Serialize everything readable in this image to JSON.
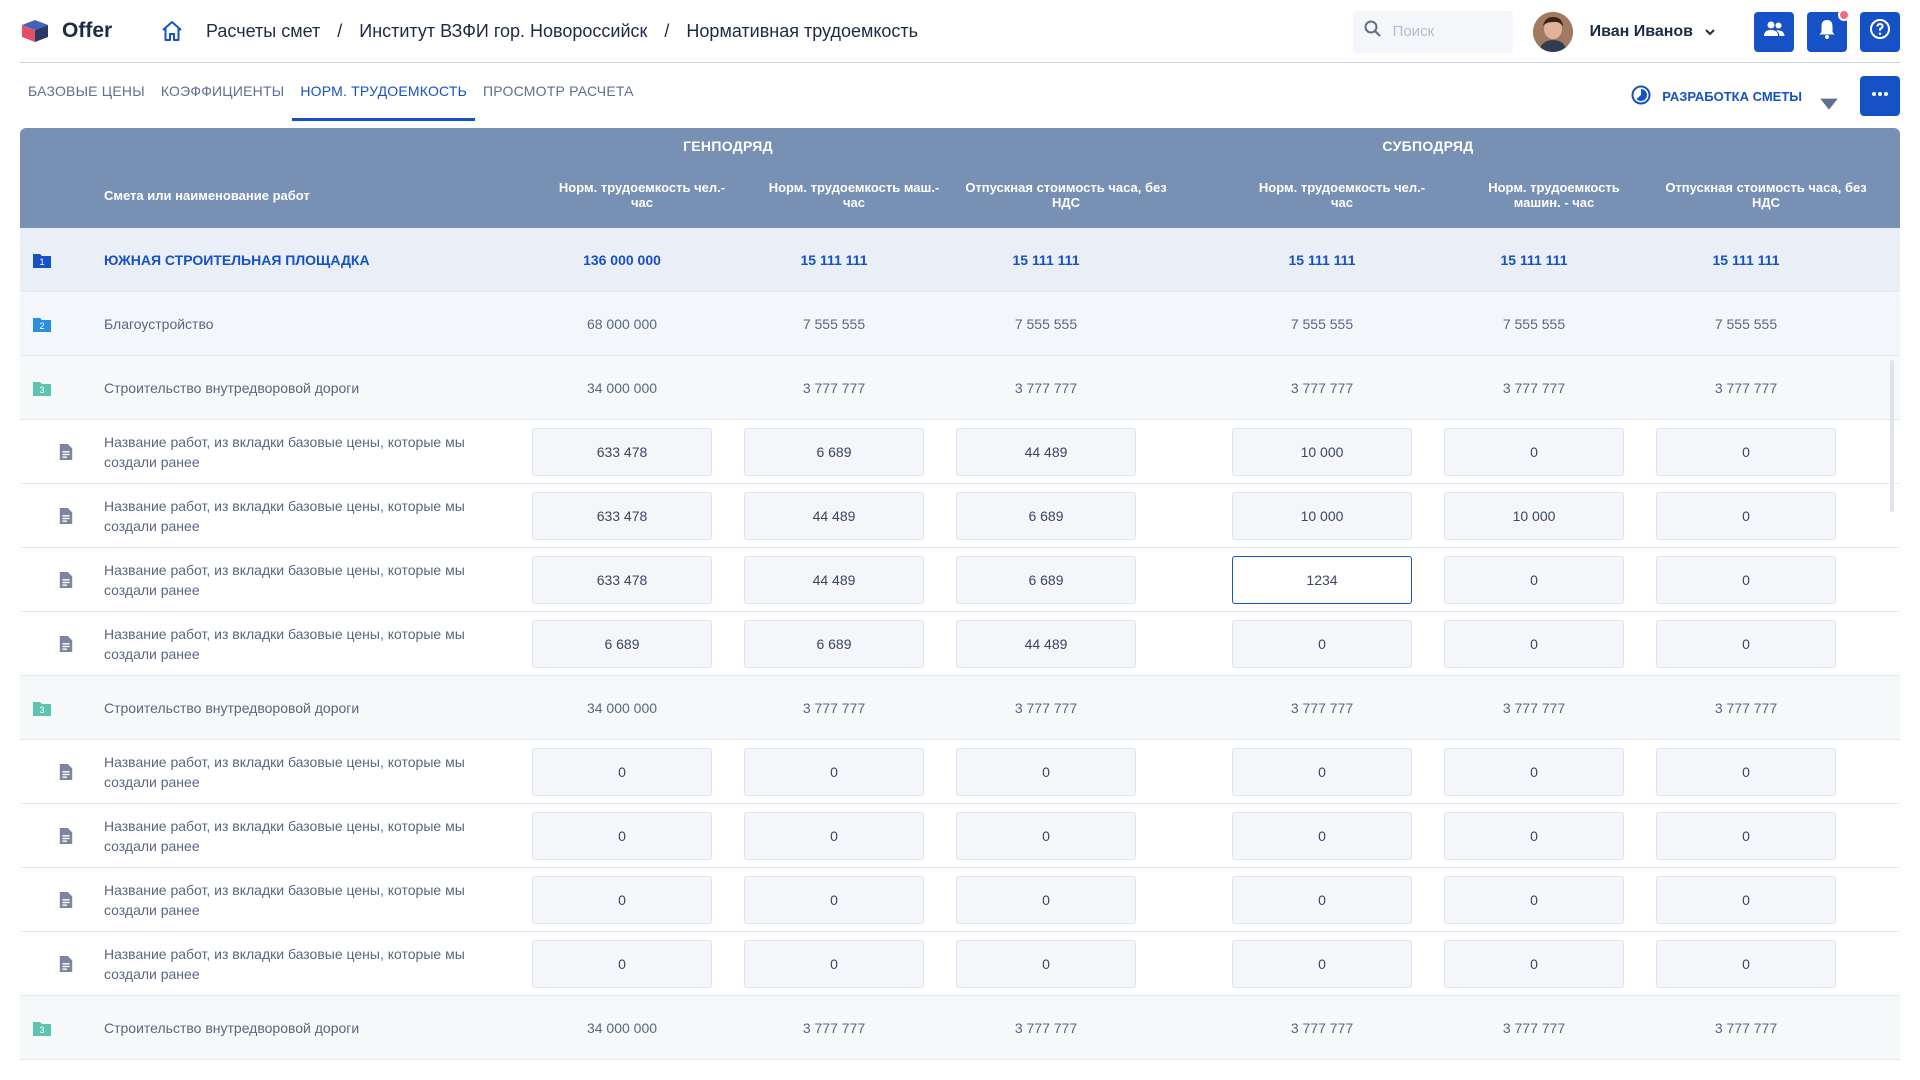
{
  "app": {
    "name": "Offer"
  },
  "breadcrumb": [
    "Расчеты смет",
    "Институт ВЗФИ гор. Новороссийск",
    "Нормативная трудоемкость"
  ],
  "breadcrumb_sep": "/",
  "search": {
    "placeholder": "Поиск"
  },
  "user": {
    "name": "Иван Иванов"
  },
  "tabs": [
    {
      "label": "БАЗОВЫЕ ЦЕНЫ"
    },
    {
      "label": "КОЭФФИЦИЕНТЫ"
    },
    {
      "label": "НОРМ. ТРУДОЕМКОСТЬ"
    },
    {
      "label": "ПРОСМОТР РАСЧЕТА"
    }
  ],
  "active_tab": 2,
  "stage": {
    "label": "РАЗРАБОТКА СМЕТЫ"
  },
  "colors": {
    "primary": "#1651c6",
    "header_bg": "#7890b4",
    "notification": "#f26c78"
  },
  "table": {
    "groups": [
      "ГЕНПОДРЯД",
      "СУБПОДРЯД"
    ],
    "name_header": "Смета или наименование работ",
    "columns": [
      "Норм. трудоемкость чел.- час",
      "Норм. трудоемкость маш.- час",
      "Отпускная стоимость часа, без НДС",
      "Норм. трудоемкость чел.- час",
      "Норм. трудоемкость машин. - час",
      "Отпускная стоимость часа, без НДС"
    ],
    "rows": [
      {
        "type": "l1",
        "badge": "1",
        "name": "ЮЖНАЯ СТРОИТЕЛЬНАЯ ПЛОЩАДКА",
        "values": [
          "136 000 000",
          "15 111 111",
          "15 111 111",
          "15 111 111",
          "15 111 111",
          "15 111 111"
        ]
      },
      {
        "type": "l2",
        "badge": "2",
        "name": "Благоустройство",
        "values": [
          "68 000 000",
          "7 555 555",
          "7 555 555",
          "7 555 555",
          "7 555 555",
          "7 555 555"
        ]
      },
      {
        "type": "l3",
        "badge": "3",
        "name": "Строительство внутредворовой дороги",
        "values": [
          "34 000 000",
          "3 777 777",
          "3 777 777",
          "3 777 777",
          "3 777 777",
          "3 777 777"
        ]
      },
      {
        "type": "item",
        "name": "Название работ, из вкладки базовые цены, которые мы создали ранее",
        "values": [
          "633 478",
          "6 689",
          "44 489",
          "10 000",
          "0",
          "0"
        ]
      },
      {
        "type": "item",
        "name": "Название работ, из вкладки базовые цены, которые мы создали ранее",
        "values": [
          "633 478",
          "44 489",
          "6 689",
          "10 000",
          "10 000",
          "0"
        ]
      },
      {
        "type": "item",
        "name": "Название работ, из вкладки базовые цены, которые мы создали ранее",
        "values": [
          "633 478",
          "44 489",
          "6 689",
          "1234",
          "0",
          "0"
        ],
        "focus_col": 3
      },
      {
        "type": "item",
        "name": "Название работ, из вкладки базовые цены, которые мы создали ранее",
        "values": [
          "6 689",
          "6 689",
          "44 489",
          "0",
          "0",
          "0"
        ]
      },
      {
        "type": "l3",
        "badge": "3",
        "name": "Строительство внутредворовой дороги",
        "values": [
          "34 000 000",
          "3 777 777",
          "3 777 777",
          "3 777 777",
          "3 777 777",
          "3 777 777"
        ]
      },
      {
        "type": "item",
        "name": "Название работ, из вкладки базовые цены, которые мы создали ранее",
        "values": [
          "0",
          "0",
          "0",
          "0",
          "0",
          "0"
        ]
      },
      {
        "type": "item",
        "name": "Название работ, из вкладки базовые цены, которые мы создали ранее",
        "values": [
          "0",
          "0",
          "0",
          "0",
          "0",
          "0"
        ]
      },
      {
        "type": "item",
        "name": "Название работ, из вкладки базовые цены, которые мы создали ранее",
        "values": [
          "0",
          "0",
          "0",
          "0",
          "0",
          "0"
        ]
      },
      {
        "type": "item",
        "name": "Название работ, из вкладки базовые цены, которые мы создали ранее",
        "values": [
          "0",
          "0",
          "0",
          "0",
          "0",
          "0"
        ]
      },
      {
        "type": "l3",
        "badge": "3",
        "name": "Строительство внутредворовой дороги",
        "values": [
          "34 000 000",
          "3 777 777",
          "3 777 777",
          "3 777 777",
          "3 777 777",
          "3 777 777"
        ]
      }
    ]
  }
}
